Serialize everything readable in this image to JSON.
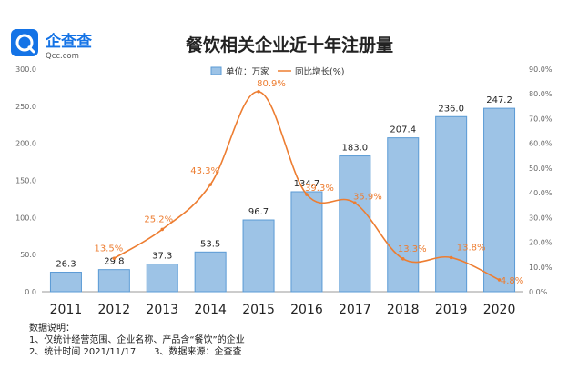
{
  "brand": {
    "name": "企查查",
    "domain": "Qcc.com"
  },
  "chart_data": {
    "type": "bar+line",
    "title": "餐饮相关企业近十年注册量",
    "categories": [
      "2011",
      "2012",
      "2013",
      "2014",
      "2015",
      "2016",
      "2017",
      "2018",
      "2019",
      "2020"
    ],
    "series": [
      {
        "name": "单位：万家",
        "type": "bar",
        "axis": "left",
        "values": [
          26.3,
          29.8,
          37.3,
          53.5,
          96.7,
          134.7,
          183.0,
          207.4,
          236.0,
          247.2
        ],
        "labels": [
          "26.3",
          "29.8",
          "37.3",
          "53.5",
          "96.7",
          "134.7",
          "183.0",
          "207.4",
          "236.0",
          "247.2"
        ]
      },
      {
        "name": "同比增长(%)",
        "type": "line",
        "axis": "right",
        "values": [
          null,
          13.5,
          25.2,
          43.3,
          80.9,
          39.3,
          35.9,
          13.3,
          13.8,
          4.8
        ],
        "labels": [
          "",
          "13.5%",
          "25.2%",
          "43.3%",
          "80.9%",
          "39.3%",
          "35.9%",
          "13.3%",
          "13.8%",
          "4.8%"
        ]
      }
    ],
    "y_left": {
      "min": 0,
      "max": 300,
      "ticks": [
        "0.0",
        "50.0",
        "100.0",
        "150.0",
        "200.0",
        "250.0",
        "300.0"
      ]
    },
    "y_right": {
      "min": 0,
      "max": 90,
      "ticks": [
        "0.0%",
        "10.0%",
        "20.0%",
        "30.0%",
        "40.0%",
        "50.0%",
        "60.0%",
        "70.0%",
        "80.0%",
        "90.0%"
      ]
    },
    "legend": {
      "position": "top-right"
    },
    "colors": {
      "bar": "#9dc3e6",
      "bar_edge": "#5b9bd5",
      "line": "#ed7d31",
      "label_line": "#ed7d31",
      "label_bar": "#222222"
    }
  },
  "notes": {
    "heading": "数据说明：",
    "line1": "1、仅统计经营范围、企业名称、产品含“餐饮”的企业",
    "line2": "2、统计时间 2021/11/17　　3、数据来源：企查查"
  }
}
